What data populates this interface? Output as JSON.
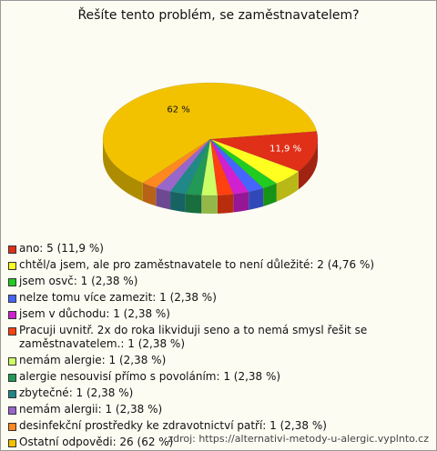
{
  "chart_data": {
    "type": "pie",
    "title": "Řešíte tento problém, se zaměstnavatelem?",
    "categories": [
      "ano: 5 (11,9 %)",
      "chtěl/a jsem, ale pro zaměstnavatele to není důležité: 2 (4,76 %)",
      "jsem osvč: 1 (2,38 %)",
      "nelze tomu více zamezit: 1 (2,38 %)",
      "jsem v důchodu: 1 (2,38 %)",
      "Pracuji uvnitř. 2x do roka likviduji seno a to nemá smysl řešit se zaměstnavatelem.: 1 (2,38 %)",
      "nemám alergie: 1 (2,38 %)",
      "alergie nesouvisí přímo s povoláním: 1 (2,38 %)",
      "zbytečné: 1 (2,38 %)",
      "nemám alergii: 1 (2,38 %)",
      "desinfekční prostředky ke zdravotnictví patří: 1 (2,38 %)",
      "Ostatní odpovědi: 26 (62 %)"
    ],
    "values": [
      11.9,
      4.76,
      2.38,
      2.38,
      2.38,
      2.38,
      2.38,
      2.38,
      2.38,
      2.38,
      2.38,
      62
    ],
    "value_labels": [
      "11,9 %",
      null,
      null,
      null,
      null,
      null,
      null,
      null,
      null,
      null,
      null,
      "62 %"
    ],
    "colors": [
      "#e03018",
      "#ffff20",
      "#20cc20",
      "#4466ff",
      "#d020d0",
      "#ff4010",
      "#ccff66",
      "#229955",
      "#208888",
      "#9966cc",
      "#ff8820",
      "#f2c200"
    ],
    "source": "zdroj: https://alternativi-metody-u-alergic.vyplnto.cz"
  }
}
